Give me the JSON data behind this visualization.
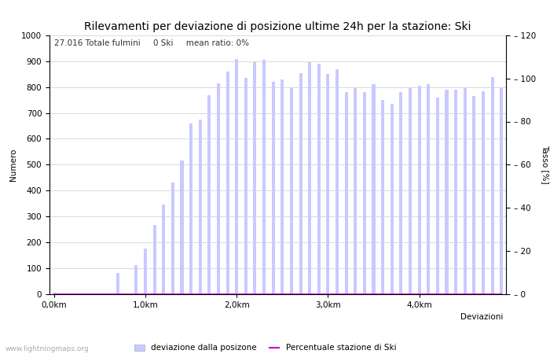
{
  "title": "Rilevamenti per deviazione di posizione ultime 24h per la stazione: Ski",
  "subtitle": "27.016 Totale fulmini     0 Ski     mean ratio: 0%",
  "xlabel": "Deviazioni",
  "ylabel_left": "Numero",
  "ylabel_right": "Tasso [%]",
  "watermark": "www.lightningmaps.org",
  "n_bars": 50,
  "xlim": [
    -0.5,
    49.5
  ],
  "ylim_left": [
    0,
    1000
  ],
  "ylim_right": [
    0,
    120
  ],
  "xtick_positions": [
    0,
    10,
    20,
    30,
    40
  ],
  "xtick_labels": [
    "0,0km",
    "1,0km",
    "2,0km",
    "3,0km",
    "4,0km"
  ],
  "ytick_left": [
    0,
    100,
    200,
    300,
    400,
    500,
    600,
    700,
    800,
    900,
    1000
  ],
  "ytick_right": [
    0,
    20,
    40,
    60,
    80,
    100,
    120
  ],
  "bar_values": [
    5,
    0,
    0,
    2,
    0,
    2,
    0,
    80,
    0,
    110,
    175,
    265,
    345,
    430,
    515,
    660,
    675,
    770,
    815,
    860,
    910,
    835,
    895,
    905,
    820,
    830,
    800,
    855,
    895,
    890,
    850,
    870,
    780,
    795,
    780,
    810,
    750,
    735,
    780,
    795,
    805,
    810,
    760,
    790,
    790,
    795,
    765,
    785,
    840,
    800
  ],
  "bar_ski_values": [
    0,
    0,
    0,
    0,
    0,
    0,
    0,
    0,
    0,
    0,
    0,
    0,
    0,
    0,
    0,
    0,
    0,
    0,
    0,
    0,
    0,
    0,
    0,
    0,
    0,
    0,
    0,
    0,
    0,
    0,
    0,
    0,
    0,
    0,
    0,
    0,
    0,
    0,
    0,
    0,
    0,
    0,
    0,
    0,
    0,
    0,
    0,
    0,
    0,
    0
  ],
  "pct_line": [
    0,
    0,
    0,
    0,
    0,
    0,
    0,
    0,
    0,
    0,
    0,
    0,
    0,
    0,
    0,
    0,
    0,
    0,
    0,
    0,
    0,
    0,
    0,
    0,
    0,
    0,
    0,
    0,
    0,
    0,
    0,
    0,
    0,
    0,
    0,
    0,
    0,
    0,
    0,
    0,
    0,
    0,
    0,
    0,
    0,
    0,
    0,
    0,
    0,
    0
  ],
  "bar_color_light": "#c8caff",
  "bar_color_dark": "#5555bb",
  "pct_line_color": "#cc00cc",
  "bg_color": "#ffffff",
  "grid_color": "#cccccc",
  "title_fontsize": 10,
  "subtitle_fontsize": 7.5,
  "axis_fontsize": 7.5,
  "label_fontsize": 7.5,
  "bar_width": 0.35
}
